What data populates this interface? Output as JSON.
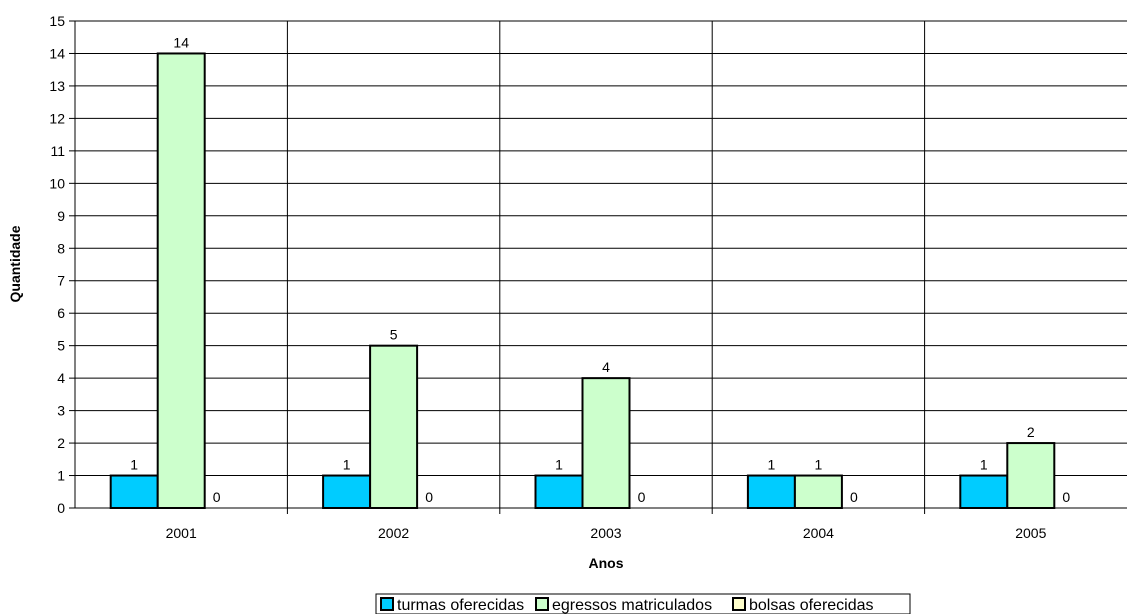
{
  "chart_data": {
    "type": "bar",
    "title": "",
    "xlabel": "Anos",
    "ylabel": "Quantidade",
    "categories": [
      "2001",
      "2002",
      "2003",
      "2004",
      "2005"
    ],
    "ylim": [
      0,
      15
    ],
    "ytick_step": 1,
    "grid": true,
    "legend_position": "bottom",
    "series": [
      {
        "name": "turmas oferecidas",
        "values": [
          1,
          1,
          1,
          1,
          1
        ],
        "color": "#00CCFF"
      },
      {
        "name": "egressos matriculados",
        "values": [
          14,
          5,
          4,
          1,
          2
        ],
        "color": "#CCFFCC"
      },
      {
        "name": "bolsas oferecidas",
        "values": [
          0,
          0,
          0,
          0,
          0
        ],
        "color": "#FFFFCC"
      }
    ]
  }
}
